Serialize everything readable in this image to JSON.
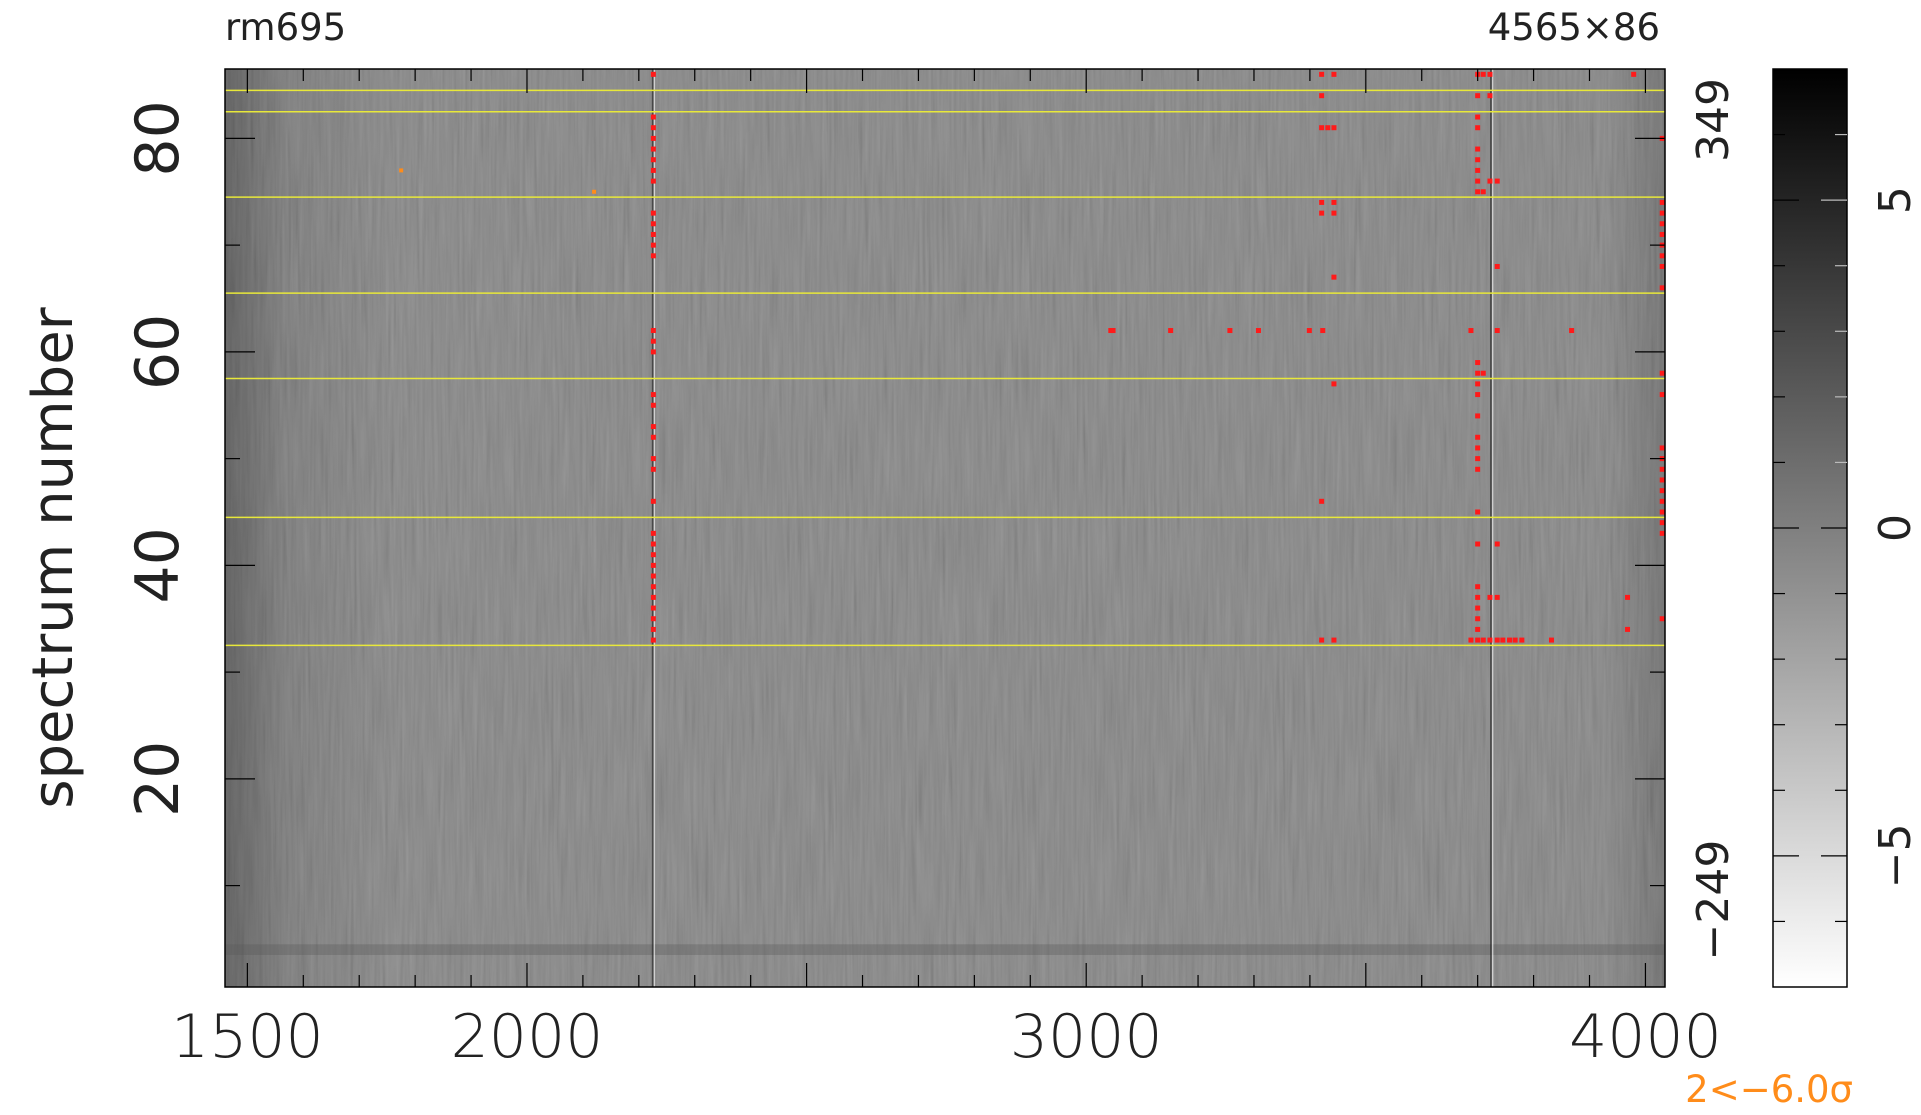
{
  "header": {
    "left_label": "rm695",
    "right_label": "4565×86"
  },
  "footer": {
    "note": "2<−6.0σ",
    "note_color": "#ff8c1a"
  },
  "chart_data": {
    "type": "heatmap",
    "title": "",
    "xlabel": "",
    "ylabel": "spectrum number",
    "xlim": [
      1460,
      4035
    ],
    "ylim": [
      0.5,
      86.5
    ],
    "x_ticks": [
      1500,
      2000,
      3000,
      4000
    ],
    "x_tick_labels": [
      "1500",
      "2000",
      "3000",
      "4000"
    ],
    "y_ticks": [
      20,
      40,
      60,
      80
    ],
    "y_tick_labels": [
      "20",
      "40",
      "60",
      "80"
    ],
    "right_axis_labels": {
      "top": "349",
      "bottom": "−249"
    },
    "colormap": "grayscale (white = low, black = high)",
    "colorbar": {
      "range": [
        -7,
        7
      ],
      "ticks": [
        -5,
        0,
        5
      ],
      "tick_labels": [
        "−5",
        "0",
        "5"
      ]
    },
    "colors": {
      "background_gray": "#808080",
      "guide_line": "#e8e83a",
      "flag_marker": "#ff1a1a",
      "low_marker": "#ff8c1a"
    },
    "horizontal_lines_at_spectrum": [
      32.5,
      44.5,
      57.5,
      65.5,
      74.5,
      82.5,
      84.5
    ],
    "bright_columns_x": [
      2225,
      3724
    ],
    "flagged_points": [
      {
        "x": 2226,
        "y": 33
      },
      {
        "x": 2226,
        "y": 34
      },
      {
        "x": 2226,
        "y": 35
      },
      {
        "x": 2226,
        "y": 36
      },
      {
        "x": 2226,
        "y": 37
      },
      {
        "x": 2226,
        "y": 38
      },
      {
        "x": 2226,
        "y": 39
      },
      {
        "x": 2226,
        "y": 40
      },
      {
        "x": 2226,
        "y": 41
      },
      {
        "x": 2226,
        "y": 42
      },
      {
        "x": 2226,
        "y": 43
      },
      {
        "x": 2226,
        "y": 46
      },
      {
        "x": 2226,
        "y": 49
      },
      {
        "x": 2226,
        "y": 50
      },
      {
        "x": 2226,
        "y": 52
      },
      {
        "x": 2226,
        "y": 53
      },
      {
        "x": 2226,
        "y": 55
      },
      {
        "x": 2226,
        "y": 56
      },
      {
        "x": 2226,
        "y": 60
      },
      {
        "x": 2226,
        "y": 61
      },
      {
        "x": 2226,
        "y": 62
      },
      {
        "x": 2226,
        "y": 69
      },
      {
        "x": 2226,
        "y": 70
      },
      {
        "x": 2226,
        "y": 71
      },
      {
        "x": 2226,
        "y": 72
      },
      {
        "x": 2226,
        "y": 73
      },
      {
        "x": 2226,
        "y": 76
      },
      {
        "x": 2226,
        "y": 77
      },
      {
        "x": 2226,
        "y": 78
      },
      {
        "x": 2226,
        "y": 79
      },
      {
        "x": 2226,
        "y": 80
      },
      {
        "x": 2226,
        "y": 81
      },
      {
        "x": 2226,
        "y": 82
      },
      {
        "x": 2226,
        "y": 86
      },
      {
        "x": 3044,
        "y": 62
      },
      {
        "x": 3048,
        "y": 62
      },
      {
        "x": 3151,
        "y": 62
      },
      {
        "x": 3257,
        "y": 62
      },
      {
        "x": 3308,
        "y": 62
      },
      {
        "x": 3399,
        "y": 62
      },
      {
        "x": 3423,
        "y": 62
      },
      {
        "x": 3688,
        "y": 62
      },
      {
        "x": 3735,
        "y": 62
      },
      {
        "x": 3868,
        "y": 62
      },
      {
        "x": 3421,
        "y": 33
      },
      {
        "x": 3443,
        "y": 33
      },
      {
        "x": 3421,
        "y": 46
      },
      {
        "x": 3443,
        "y": 57
      },
      {
        "x": 3443,
        "y": 67
      },
      {
        "x": 3421,
        "y": 73
      },
      {
        "x": 3443,
        "y": 73
      },
      {
        "x": 3421,
        "y": 74
      },
      {
        "x": 3443,
        "y": 74
      },
      {
        "x": 3421,
        "y": 81
      },
      {
        "x": 3432,
        "y": 81
      },
      {
        "x": 3443,
        "y": 81
      },
      {
        "x": 3421,
        "y": 84
      },
      {
        "x": 3421,
        "y": 86
      },
      {
        "x": 3443,
        "y": 86
      },
      {
        "x": 3688,
        "y": 33
      },
      {
        "x": 3700,
        "y": 33
      },
      {
        "x": 3710,
        "y": 33
      },
      {
        "x": 3722,
        "y": 33
      },
      {
        "x": 3735,
        "y": 33
      },
      {
        "x": 3745,
        "y": 33
      },
      {
        "x": 3757,
        "y": 33
      },
      {
        "x": 3767,
        "y": 33
      },
      {
        "x": 3779,
        "y": 33
      },
      {
        "x": 3832,
        "y": 33
      },
      {
        "x": 3700,
        "y": 34
      },
      {
        "x": 3700,
        "y": 35
      },
      {
        "x": 3700,
        "y": 36
      },
      {
        "x": 3700,
        "y": 37
      },
      {
        "x": 3700,
        "y": 38
      },
      {
        "x": 3722,
        "y": 37
      },
      {
        "x": 3735,
        "y": 37
      },
      {
        "x": 3700,
        "y": 42
      },
      {
        "x": 3735,
        "y": 42
      },
      {
        "x": 3700,
        "y": 45
      },
      {
        "x": 3700,
        "y": 49
      },
      {
        "x": 3700,
        "y": 50
      },
      {
        "x": 3700,
        "y": 51
      },
      {
        "x": 3700,
        "y": 52
      },
      {
        "x": 3700,
        "y": 54
      },
      {
        "x": 3700,
        "y": 56
      },
      {
        "x": 3700,
        "y": 57
      },
      {
        "x": 3700,
        "y": 58
      },
      {
        "x": 3700,
        "y": 59
      },
      {
        "x": 3710,
        "y": 58
      },
      {
        "x": 3735,
        "y": 68
      },
      {
        "x": 3700,
        "y": 75
      },
      {
        "x": 3710,
        "y": 75
      },
      {
        "x": 3700,
        "y": 76
      },
      {
        "x": 3722,
        "y": 76
      },
      {
        "x": 3735,
        "y": 76
      },
      {
        "x": 3700,
        "y": 77
      },
      {
        "x": 3700,
        "y": 78
      },
      {
        "x": 3700,
        "y": 79
      },
      {
        "x": 3700,
        "y": 81
      },
      {
        "x": 3700,
        "y": 82
      },
      {
        "x": 3700,
        "y": 84
      },
      {
        "x": 3722,
        "y": 84
      },
      {
        "x": 3700,
        "y": 86
      },
      {
        "x": 3710,
        "y": 86
      },
      {
        "x": 3722,
        "y": 86
      },
      {
        "x": 3968,
        "y": 34
      },
      {
        "x": 3968,
        "y": 37
      },
      {
        "x": 3979,
        "y": 86
      },
      {
        "x": 4030,
        "y": 35
      },
      {
        "x": 4030,
        "y": 43
      },
      {
        "x": 4030,
        "y": 44
      },
      {
        "x": 4030,
        "y": 45
      },
      {
        "x": 4030,
        "y": 46
      },
      {
        "x": 4030,
        "y": 47
      },
      {
        "x": 4030,
        "y": 48
      },
      {
        "x": 4030,
        "y": 49
      },
      {
        "x": 4030,
        "y": 50
      },
      {
        "x": 4030,
        "y": 51
      },
      {
        "x": 4030,
        "y": 56
      },
      {
        "x": 4030,
        "y": 58
      },
      {
        "x": 4030,
        "y": 66
      },
      {
        "x": 4030,
        "y": 68
      },
      {
        "x": 4030,
        "y": 69
      },
      {
        "x": 4030,
        "y": 70
      },
      {
        "x": 4030,
        "y": 71
      },
      {
        "x": 4030,
        "y": 72
      },
      {
        "x": 4030,
        "y": 73
      },
      {
        "x": 4030,
        "y": 74
      },
      {
        "x": 4030,
        "y": 80
      }
    ],
    "low_points": [
      {
        "x": 1775,
        "y": 77
      },
      {
        "x": 2120,
        "y": 75
      }
    ]
  }
}
